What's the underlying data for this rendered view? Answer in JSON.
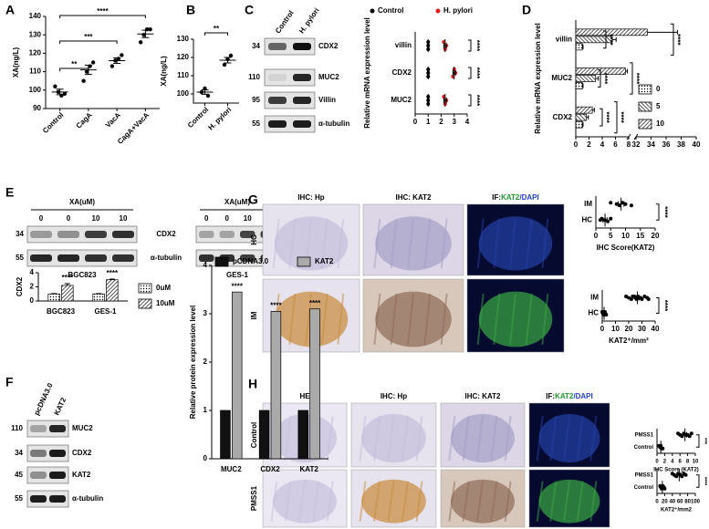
{
  "figure": {
    "panel_labels": [
      "A",
      "B",
      "C",
      "D",
      "E",
      "F",
      "G",
      "H"
    ],
    "blot_C": {
      "lanes": [
        "Control",
        "H. pylori"
      ],
      "rows": [
        {
          "marker": 34,
          "label": "CDX2"
        },
        {
          "marker": 110,
          "label": "MUC2"
        },
        {
          "marker": 95,
          "label": "Villin"
        },
        {
          "marker": 55,
          "label": "α-tubulin"
        }
      ]
    },
    "blot_E": {
      "treatment": "XA(uM)",
      "doses": [
        "0",
        "0",
        "10",
        "10"
      ],
      "rows": [
        {
          "marker": 34,
          "label": "CDX2"
        },
        {
          "marker": 55,
          "label": "α-tubulin"
        }
      ],
      "cells": [
        "BGC823",
        "GES-1"
      ]
    },
    "blot_F": {
      "lanes": [
        "pcDNA3.0",
        "KAT2"
      ],
      "rows": [
        {
          "marker": 110,
          "label": "MUC2"
        },
        {
          "marker": 34,
          "label": "CDX2"
        },
        {
          "marker": 45,
          "label": "KAT2"
        },
        {
          "marker": 55,
          "label": "α-tubulin"
        }
      ]
    },
    "images_G": {
      "columns": [
        "IHC: Hp",
        "IHC: KAT2",
        [
          "IF:",
          "KAT2",
          "/DAPI"
        ]
      ],
      "rows": [
        "HC",
        "IM"
      ]
    },
    "images_H": {
      "columns": [
        "HE",
        "IHC: Hp",
        "IHC: KAT2",
        [
          "IF:",
          "KAT2",
          "/DAPI"
        ]
      ],
      "rows": [
        "Control",
        "PMSS1"
      ]
    }
  },
  "chart_data": [
    {
      "type": "dot",
      "ylabel": "XA(ng/L)",
      "color": "#000000",
      "categories": [
        "Control",
        "CagA",
        "VacA",
        "CagA+VacA"
      ],
      "groups": [
        [
          102,
          99,
          97,
          98
        ],
        [
          105,
          110,
          113,
          115
        ],
        [
          113,
          116,
          117,
          119
        ],
        [
          126,
          130,
          133,
          133
        ]
      ],
      "means": [
        99,
        111,
        116,
        130.5
      ],
      "errors": [
        1.5,
        2.5,
        1.5,
        2
      ],
      "ylim": [
        90,
        140
      ],
      "yticks": [
        90,
        100,
        110,
        120,
        130,
        140
      ],
      "annotations": [
        "**",
        "***",
        "****"
      ]
    },
    {
      "type": "dot",
      "ylabel": "XA(ng/L)",
      "color": "#000000",
      "categories": [
        "Control",
        "H. pylori"
      ],
      "groups": [
        [
          101,
          103,
          99
        ],
        [
          116,
          119,
          121
        ]
      ],
      "means": [
        101,
        118.5
      ],
      "errors": [
        1.2,
        1.5
      ],
      "ylim": [
        95,
        130
      ],
      "yticks": [
        100,
        110,
        120,
        130
      ],
      "annotations": [
        "**"
      ]
    },
    {
      "type": "dot-h",
      "ylabel": "Relative mRNA expression level",
      "categories": [
        "MUC2",
        "CDX2",
        "villin"
      ],
      "series": [
        {
          "name": "Control",
          "color": "#000000",
          "groups": [
            [
              1,
              1,
              1
            ],
            [
              1,
              1,
              1
            ],
            [
              1,
              1,
              1
            ]
          ],
          "means": [
            1,
            1,
            1
          ],
          "errors": [
            0.05,
            0.05,
            0.05
          ]
        },
        {
          "name": "H. pylori",
          "color": "#e41a1c",
          "groups": [
            [
              2.2,
              2.4,
              2.3
            ],
            [
              3.0,
              3.1,
              2.9
            ],
            [
              2.2,
              2.4,
              2.3
            ]
          ],
          "means": [
            2.3,
            3.0,
            2.3
          ],
          "errors": [
            0.1,
            0.1,
            0.1
          ]
        }
      ],
      "xlim": [
        0,
        4
      ],
      "xticks": [
        0,
        1,
        2,
        3,
        4
      ],
      "annotations": [
        "****",
        "****",
        "****"
      ]
    },
    {
      "type": "bar-h",
      "ylabel": "Relative mRNA expression level",
      "categories": [
        "CDX2",
        "MUC2",
        "villin"
      ],
      "series": [
        {
          "name": "0",
          "pattern": "dots",
          "values": [
            1,
            1,
            1
          ],
          "errors": [
            0.1,
            0.1,
            0.1
          ]
        },
        {
          "name": "5",
          "pattern": "backslash",
          "values": [
            1.6,
            3.0,
            5.5
          ],
          "errors": [
            0.3,
            0.4,
            0.6
          ]
        },
        {
          "name": "10",
          "pattern": "slash",
          "values": [
            2.5,
            7.5,
            33.5
          ],
          "errors": [
            0.3,
            0.3,
            4
          ]
        }
      ],
      "xlim": [
        0,
        40
      ],
      "xbreak": [
        8,
        32
      ],
      "xticks": [
        0,
        2,
        4,
        6,
        8,
        32,
        34,
        36,
        38,
        40
      ],
      "annotations": [
        "****",
        "****",
        "****",
        "****",
        "****",
        "****"
      ]
    },
    {
      "type": "bar",
      "ylabel": "CDX2",
      "categories": [
        "BGC823",
        "GES-1"
      ],
      "series": [
        {
          "name": "0uM",
          "pattern": "dots",
          "values": [
            1,
            1
          ],
          "errors": [
            0.05,
            0.05
          ]
        },
        {
          "name": "10uM",
          "pattern": "slash",
          "values": [
            2.2,
            3.0
          ],
          "errors": [
            0.25,
            0.1
          ]
        }
      ],
      "ylim": [
        0,
        4
      ],
      "yticks": [
        0,
        2,
        4
      ],
      "annotations": [
        "****",
        "****"
      ]
    },
    {
      "type": "bar",
      "ylabel": "Relative protein expression level",
      "categories": [
        "MUC2",
        "CDX2",
        "KAT2"
      ],
      "series": [
        {
          "name": "pCDNA3.0",
          "color": "#111111",
          "values": [
            1,
            1,
            1
          ]
        },
        {
          "name": "KAT2",
          "color": "#aaaaaa",
          "values": [
            3.45,
            3.05,
            3.1
          ]
        }
      ],
      "ylim": [
        0,
        4
      ],
      "yticks": [
        0,
        1,
        2,
        3,
        4
      ],
      "annotations": [
        "****",
        "****",
        "****"
      ]
    },
    {
      "type": "dot-h",
      "xlabel": "IHC Score(KAT2)",
      "color": "#000000",
      "categories": [
        "HC",
        "IM"
      ],
      "groups": [
        [
          2,
          3,
          4,
          5,
          1.5
        ],
        [
          5,
          7,
          8,
          9,
          10,
          12
        ]
      ],
      "means": [
        3.1,
        8.5
      ],
      "errors": [
        0.7,
        1
      ],
      "xlim": [
        0,
        20
      ],
      "xticks": [
        0,
        5,
        10,
        15,
        20
      ],
      "annotations": [
        "****"
      ]
    },
    {
      "type": "dot-h",
      "xlabel": "KAT2⁺/mm²",
      "color": "#000000",
      "categories": [
        "HC",
        "IM"
      ],
      "groups": [
        [
          0,
          0.5,
          1,
          1.5,
          2,
          2.5,
          1,
          0.5,
          3,
          2
        ],
        [
          18,
          20,
          22,
          24,
          25,
          26,
          27,
          28,
          30,
          32,
          34,
          35,
          23,
          29
        ]
      ],
      "means": [
        1.4,
        26.6
      ],
      "errors": [
        0.3,
        1.3
      ],
      "xlim": [
        0,
        40
      ],
      "xticks": [
        0,
        10,
        20,
        30,
        40
      ],
      "annotations": [
        "****"
      ]
    },
    {
      "type": "dot-h",
      "xlabel": "IHC Score (KAT2)",
      "color": "#000000",
      "categories": [
        "Control",
        "PMSS1"
      ],
      "groups": [
        [
          0.5,
          1,
          1.5,
          1,
          0.8,
          1.2
        ],
        [
          5.5,
          6,
          6.5,
          7,
          8,
          8.5,
          9,
          7.5
        ]
      ],
      "means": [
        1,
        7.3
      ],
      "errors": [
        0.15,
        0.45
      ],
      "xlim": [
        0,
        10
      ],
      "xticks": [
        0,
        2,
        4,
        6,
        8,
        10
      ],
      "annotations": [
        "***"
      ]
    },
    {
      "type": "dot-h",
      "xlabel": "KAT2⁺/mm2",
      "color": "#000000",
      "categories": [
        "Control",
        "PMSS1"
      ],
      "groups": [
        [
          8,
          10,
          12,
          15,
          18,
          20
        ],
        [
          40,
          45,
          50,
          55,
          60,
          65,
          70,
          75
        ]
      ],
      "means": [
        14,
        58
      ],
      "errors": [
        2,
        4
      ],
      "xlim": [
        0,
        100
      ],
      "xticks": [
        0,
        20,
        40,
        60,
        80,
        100
      ],
      "annotations": [
        "****"
      ]
    }
  ]
}
